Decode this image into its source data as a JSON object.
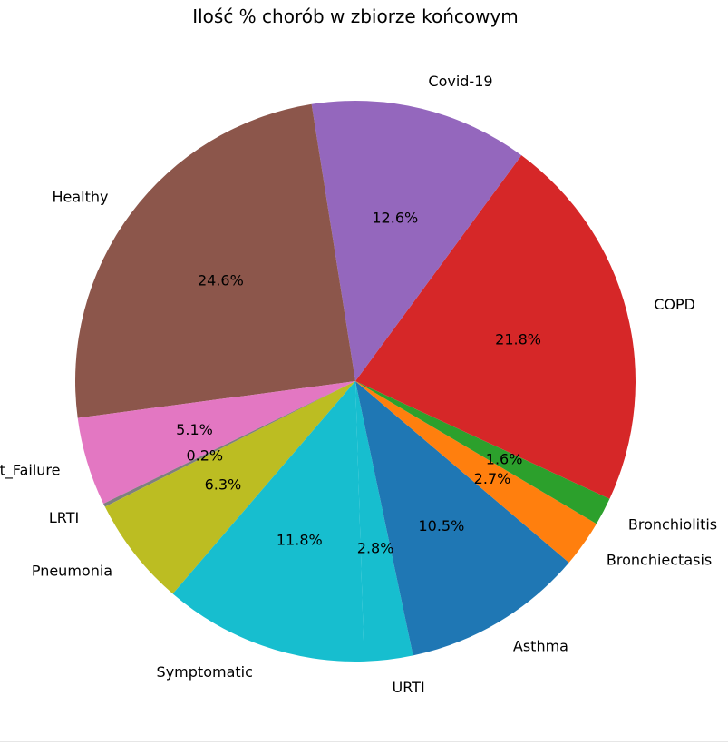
{
  "chart_data": {
    "type": "pie",
    "title": "Ilość % chorób w zbiorze końcowym",
    "start_angle_deg": -88.2,
    "counterclock": true,
    "slices": [
      {
        "label": "URTI",
        "value": 2.8,
        "pct_label": "2.8%",
        "color": "#17becf"
      },
      {
        "label": "Asthma",
        "value": 10.5,
        "pct_label": "10.5%",
        "color": "#1f77b4"
      },
      {
        "label": "Bronchiectasis",
        "value": 2.7,
        "pct_label": "2.7%",
        "color": "#ff7f0e"
      },
      {
        "label": "Bronchiolitis",
        "value": 1.6,
        "pct_label": "1.6%",
        "color": "#2ca02c"
      },
      {
        "label": "COPD",
        "value": 21.8,
        "pct_label": "21.8%",
        "color": "#d62728"
      },
      {
        "label": "Covid-19",
        "value": 12.6,
        "pct_label": "12.6%",
        "color": "#9467bd"
      },
      {
        "label": "Healthy",
        "value": 24.6,
        "pct_label": "24.6%",
        "color": "#8c564b"
      },
      {
        "label": "Heart_Failure",
        "value": 5.1,
        "pct_label": "5.1%",
        "color": "#e377c2"
      },
      {
        "label": "LRTI",
        "value": 0.2,
        "pct_label": "0.2%",
        "color": "#7f7f7f"
      },
      {
        "label": "Pneumonia",
        "value": 6.3,
        "pct_label": "6.3%",
        "color": "#bcbd22"
      },
      {
        "label": "Symptomatic",
        "value": 11.8,
        "pct_label": "11.8%",
        "color": "#17becf"
      }
    ]
  }
}
